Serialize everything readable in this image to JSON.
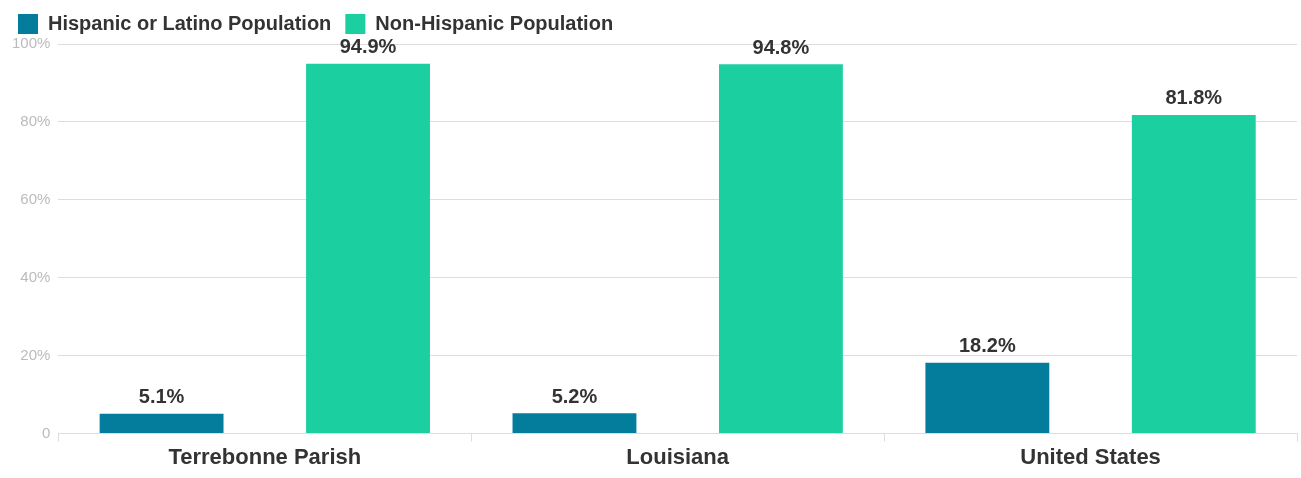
{
  "chart_data": {
    "type": "bar",
    "categories": [
      "Terrebonne Parish",
      "Louisiana",
      "United States"
    ],
    "series": [
      {
        "name": "Hispanic or Latino Population",
        "color": "#047c9c",
        "values": [
          5.1,
          5.2,
          18.2
        ],
        "value_labels": [
          "5.1%",
          "5.2%",
          "18.2%"
        ]
      },
      {
        "name": "Non-Hispanic Population",
        "color": "#1ccfa1",
        "values": [
          94.9,
          94.8,
          81.8
        ],
        "value_labels": [
          "94.9%",
          "94.8%",
          "81.8%"
        ]
      }
    ],
    "ylim": [
      0,
      100
    ],
    "yticks": [
      0,
      {
        "value": 20,
        "label": "20%"
      },
      {
        "value": 40,
        "label": "40%"
      },
      {
        "value": 60,
        "label": "60%"
      },
      {
        "value": 80,
        "label": "80%"
      },
      {
        "value": 100,
        "label": "100%"
      }
    ],
    "grid": "y",
    "legend": "top left"
  }
}
